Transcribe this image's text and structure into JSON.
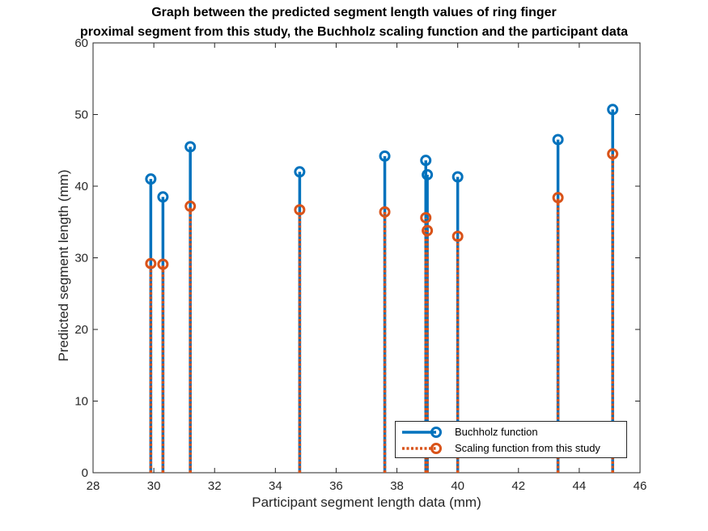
{
  "chart_data": {
    "type": "stem",
    "title": [
      "Graph between the predicted segment length values of ring finger",
      "proximal segment from this study, the Buchholz scaling function and the participant data"
    ],
    "xlabel": "Participant segment length data (mm)",
    "ylabel": "Predicted segment length (mm)",
    "xlim": [
      28,
      46
    ],
    "ylim": [
      0,
      60
    ],
    "xticks": [
      28,
      30,
      32,
      34,
      36,
      38,
      40,
      42,
      44,
      46
    ],
    "yticks": [
      0,
      10,
      20,
      30,
      40,
      50,
      60
    ],
    "grid": false,
    "legend_position": "bottom-right",
    "x": [
      29.9,
      30.3,
      31.2,
      34.8,
      37.6,
      38.95,
      39.0,
      40.0,
      43.3,
      45.1
    ],
    "series": [
      {
        "name": "Buchholz function",
        "color": "#0072BD",
        "line_style": "solid",
        "marker": "circle",
        "values": [
          41.0,
          38.5,
          45.5,
          42.0,
          44.2,
          43.6,
          41.6,
          41.3,
          46.5,
          50.7
        ]
      },
      {
        "name": "Scaling function from this study",
        "color": "#D95319",
        "line_style": "dotted",
        "marker": "circle",
        "values": [
          29.2,
          29.1,
          37.2,
          36.7,
          36.4,
          35.6,
          33.8,
          33.0,
          38.4,
          44.5
        ]
      }
    ]
  }
}
